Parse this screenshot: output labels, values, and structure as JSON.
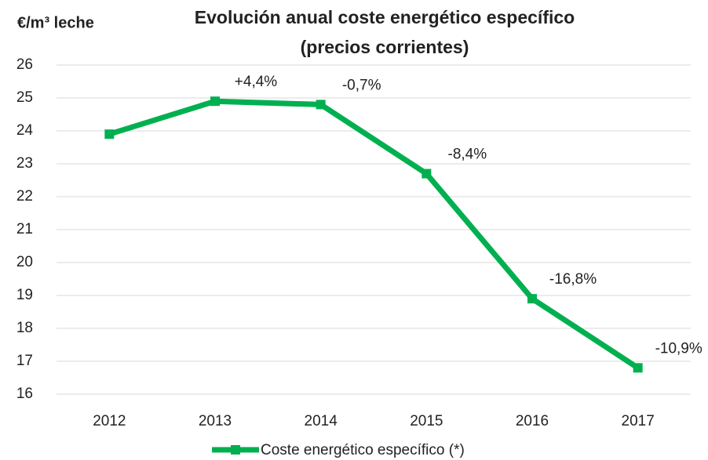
{
  "chart_data": {
    "type": "line",
    "title": "Evolución anual coste energético específico",
    "subtitle": "(precios corrientes)",
    "y_label": "€/m³ leche",
    "categories": [
      "2012",
      "2013",
      "2014",
      "2015",
      "2016",
      "2017"
    ],
    "series": [
      {
        "name": "Coste energético específico (*)",
        "color": "#00b050",
        "values": [
          23.9,
          24.9,
          24.8,
          22.7,
          18.9,
          16.8
        ],
        "annotations": [
          null,
          "+4,4%",
          "-0,7%",
          "-8,4%",
          "-16,8%",
          "-10,9%"
        ]
      }
    ],
    "ylim": [
      16,
      26
    ],
    "yticks": [
      16,
      17,
      18,
      19,
      20,
      21,
      22,
      23,
      24,
      25,
      26
    ],
    "grid": true,
    "legend": "bottom"
  }
}
